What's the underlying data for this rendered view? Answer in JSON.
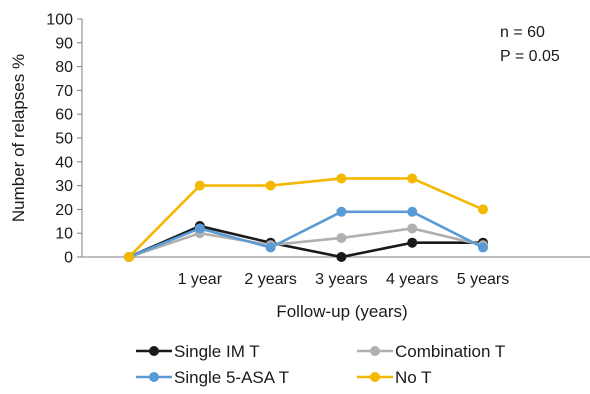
{
  "chart_data": {
    "type": "line",
    "title": "",
    "xlabel": "Follow-up (years)",
    "ylabel": "Number of relapses %",
    "categories": [
      "",
      "1 year",
      "2 years",
      "3 years",
      "4 years",
      "5 years"
    ],
    "ylim": [
      0,
      100
    ],
    "yticks": [
      "0",
      "10",
      "20",
      "30",
      "40",
      "50",
      "60",
      "70",
      "80",
      "90",
      "100"
    ],
    "grid": false,
    "legend_position": "bottom",
    "annotations": [
      "n = 60",
      "P = 0.05"
    ],
    "series": [
      {
        "name": "Single IM T",
        "color": "#1a1a1a",
        "values": [
          0,
          13,
          6,
          0,
          6,
          6
        ]
      },
      {
        "name": "Combination T",
        "color": "#b0b0b0",
        "values": [
          0,
          10,
          5,
          8,
          12,
          5
        ]
      },
      {
        "name": "Single 5-ASA T",
        "color": "#5b9bd5",
        "values": [
          0,
          12,
          4,
          19,
          19,
          4
        ]
      },
      {
        "name": "No T",
        "color": "#f5b800",
        "values": [
          0,
          30,
          30,
          33,
          33,
          20
        ]
      }
    ]
  }
}
